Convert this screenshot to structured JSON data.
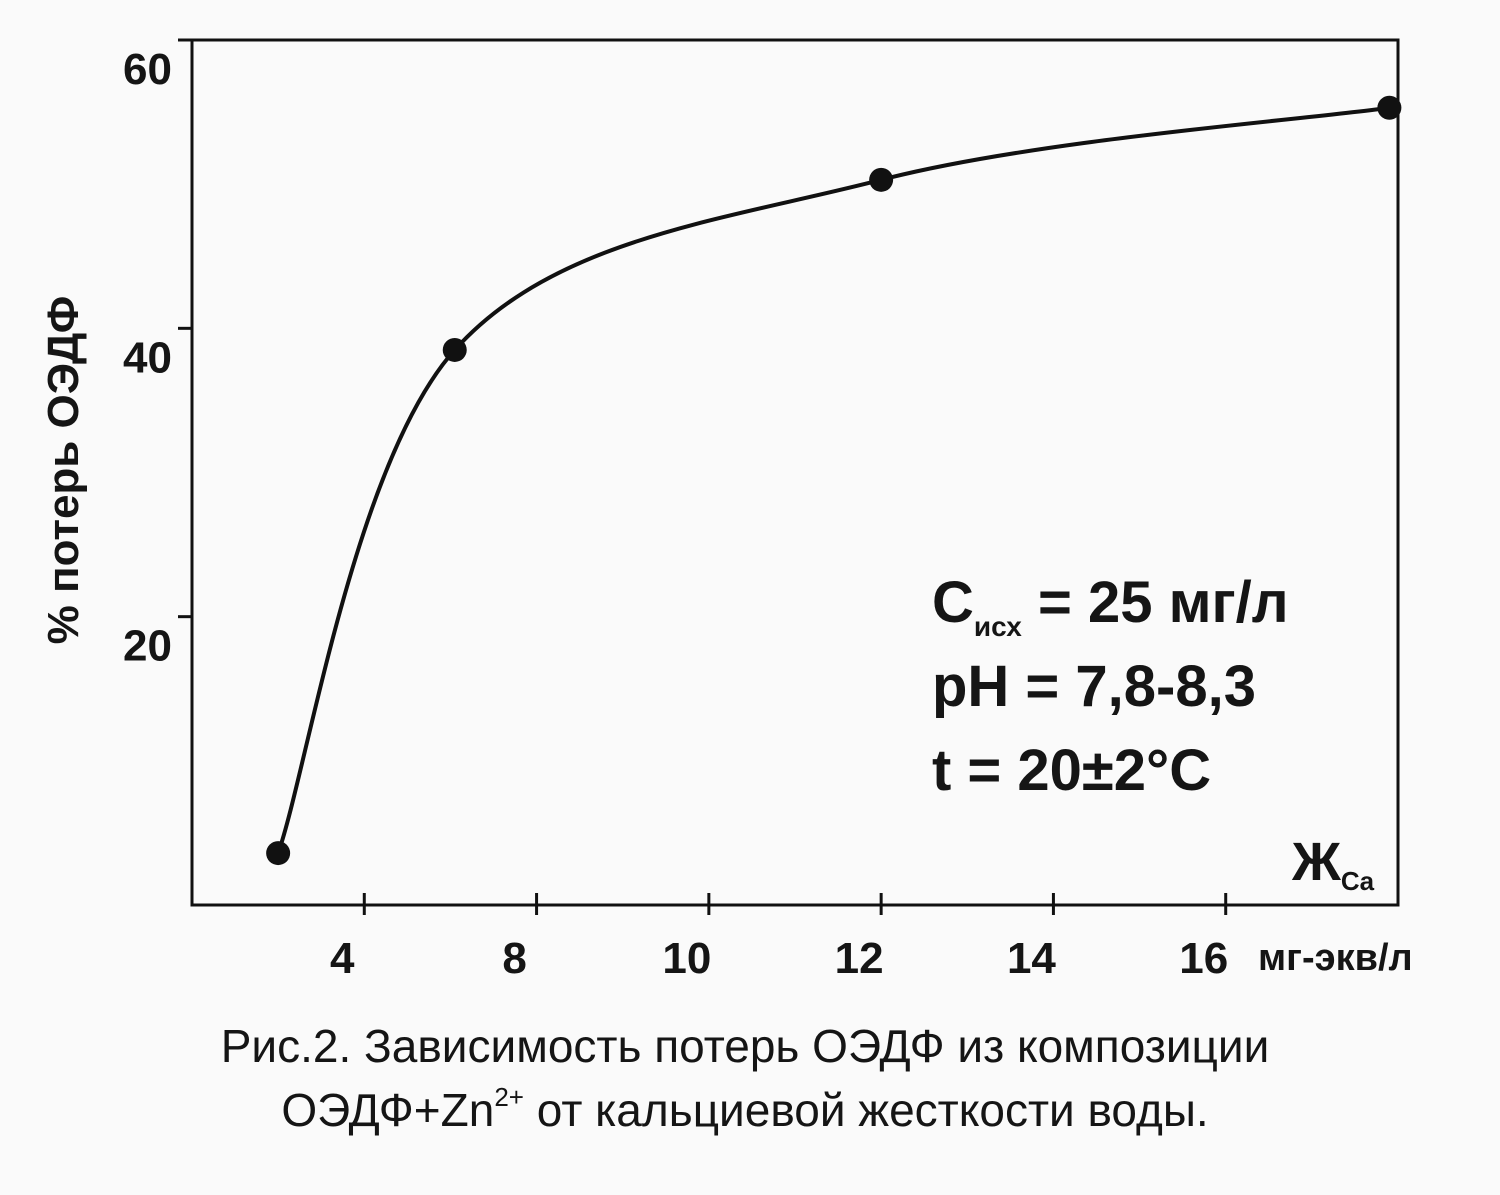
{
  "chart_data": {
    "type": "line",
    "y_label": "% потерь ОЭДФ",
    "x_label": "Ж",
    "x_label_sub": "Ca",
    "x_unit": "мг-экв/л",
    "x": [
      2.0,
      6.1,
      12.0,
      17.9
    ],
    "series": [
      {
        "color": "#111111",
        "values": [
          3.6,
          38.5,
          50.3,
          55.3
        ]
      }
    ],
    "xlim": [
      0,
      18
    ],
    "xticks": [
      4,
      8,
      10,
      12,
      14,
      16
    ],
    "ylim": [
      0,
      60
    ],
    "yticks": [
      20,
      40,
      60
    ],
    "annotations": [
      {
        "main": "C",
        "sub": "исх",
        "rest": " = 25 мг/л"
      },
      {
        "main": "pH = 7,8-8,3"
      },
      {
        "main": "t = 20±2°C"
      }
    ],
    "caption": {
      "line1": "Рис.2. Зависимость потерь ОЭДФ из композиции",
      "line2_start": "ОЭДФ+Zn",
      "line2_sup": "2+",
      "line2_end": " от кальциевой жесткости воды."
    }
  }
}
